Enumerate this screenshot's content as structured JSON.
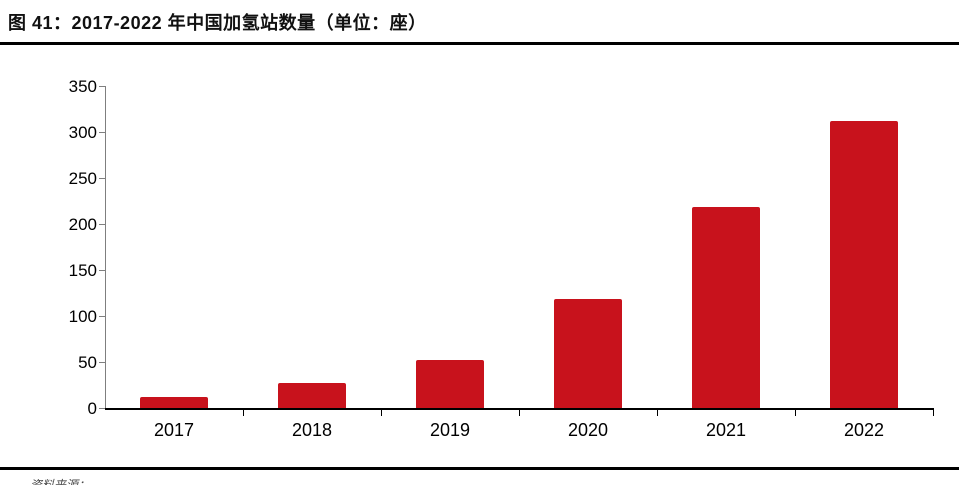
{
  "figure": {
    "title": "图 41：2017-2022 年中国加氢站数量（单位：座）",
    "source_note": "资料来源："
  },
  "chart_data": {
    "type": "bar",
    "title": "2017-2022 年中国加氢站数量",
    "unit": "座",
    "categories": [
      "2017",
      "2018",
      "2019",
      "2020",
      "2021",
      "2022"
    ],
    "values": [
      12,
      27,
      52,
      119,
      219,
      312
    ],
    "xlabel": "",
    "ylabel": "",
    "ylim": [
      0,
      350
    ],
    "yticks": [
      0,
      50,
      100,
      150,
      200,
      250,
      300,
      350
    ],
    "bar_color": "#C8121C",
    "axis_color": "#7f7f7f",
    "baseline_color": "#000000",
    "grid": false,
    "legend_position": "none"
  }
}
